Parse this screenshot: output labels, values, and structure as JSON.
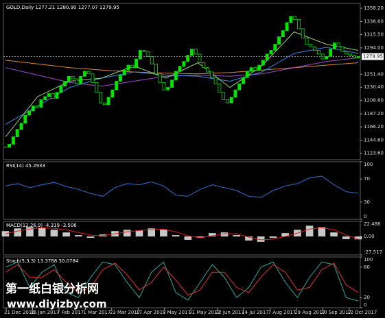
{
  "chart_data": [
    {
      "type": "candlestick",
      "title": "GOLD,Daily 1277.21 1280.90 1277.07 1279.95",
      "values": [
        1133,
        1138,
        1150,
        1162,
        1172,
        1185,
        1192,
        1200,
        1198,
        1210,
        1215,
        1220,
        1212,
        1222,
        1232,
        1240,
        1248,
        1244,
        1236,
        1248,
        1256,
        1252,
        1238,
        1222,
        1205,
        1202,
        1214,
        1226,
        1240,
        1250,
        1258,
        1266,
        1262,
        1276,
        1290,
        1288,
        1280,
        1268,
        1252,
        1238,
        1226,
        1230,
        1242,
        1256,
        1264,
        1272,
        1282,
        1292,
        1284,
        1270,
        1262,
        1255,
        1246,
        1236,
        1222,
        1210,
        1205,
        1214,
        1226,
        1236,
        1246,
        1256,
        1262,
        1258,
        1266,
        1274,
        1284,
        1290,
        1300,
        1312,
        1322,
        1335,
        1345,
        1340,
        1325,
        1310,
        1300,
        1296,
        1290,
        1284,
        1276,
        1280,
        1292,
        1302,
        1296,
        1288,
        1284,
        1282,
        1278,
        1279.95
      ],
      "color": "#00e600",
      "series": [
        {
          "color": "#d98a3a",
          "values": [
            1274,
            1268,
            1262,
            1258,
            1255,
            1253,
            1252,
            1254,
            1258,
            1262,
            1266,
            1270
          ]
        },
        {
          "color": "#a050c8",
          "values": [
            1262,
            1250,
            1238,
            1232,
            1240,
            1248,
            1250,
            1248,
            1252,
            1262,
            1272,
            1278
          ]
        },
        {
          "color": "#3a8ae0",
          "values": [
            1170,
            1200,
            1230,
            1245,
            1255,
            1250,
            1248,
            1240,
            1255,
            1285,
            1295,
            1285
          ]
        },
        {
          "color": "#9ad27a",
          "values": [
            1150,
            1215,
            1240,
            1245,
            1265,
            1245,
            1270,
            1230,
            1265,
            1320,
            1300,
            1290
          ]
        }
      ],
      "last_price": 1279.95,
      "ylim": [
        1113,
        1366
      ],
      "yticks": [
        {
          "value": 1358.2,
          "label": "1358.20"
        },
        {
          "value": 1336.6,
          "label": "1336.60"
        },
        {
          "value": 1315.5,
          "label": "1315.50"
        },
        {
          "value": 1294,
          "label": "1294.00"
        },
        {
          "value": 1251.4,
          "label": "1251.40"
        },
        {
          "value": 1230.4,
          "label": "1230.40"
        },
        {
          "value": 1208.8,
          "label": "1208.80"
        },
        {
          "value": 1187.2,
          "label": "1187.20"
        },
        {
          "value": 1166.2,
          "label": "1166.20"
        },
        {
          "value": 1144.6,
          "label": "1144.60"
        },
        {
          "value": 1123.6,
          "label": "1123.60"
        }
      ]
    },
    {
      "type": "line",
      "title": "RSI(14) 45.2933",
      "series": [
        {
          "color": "#3a6fd0",
          "values": [
            58,
            62,
            55,
            60,
            64,
            57,
            52,
            45,
            40,
            55,
            62,
            60,
            65,
            58,
            42,
            40,
            52,
            60,
            55,
            50,
            40,
            38,
            50,
            58,
            62,
            72,
            75,
            60,
            48,
            45.2933
          ]
        }
      ],
      "ylim": [
        0,
        100
      ],
      "yticks": [
        100,
        70,
        30,
        0
      ]
    },
    {
      "type": "macd",
      "title": "MACD(12,26,9) -4.319 -3.506",
      "values": [
        8,
        12,
        14,
        13,
        10,
        6,
        2,
        -2,
        3,
        8,
        10,
        9,
        12,
        10,
        2,
        -5,
        -2,
        5,
        6,
        2,
        -6,
        -8,
        -2,
        5,
        10,
        16,
        14,
        6,
        -4,
        -4.319
      ],
      "color": "#c8c8c8",
      "series": [
        {
          "color": "#e02020",
          "values": [
            4,
            8,
            11,
            13,
            12,
            10,
            6,
            2,
            1,
            4,
            7,
            9,
            10,
            11,
            7,
            1,
            -2,
            1,
            4,
            4,
            -1,
            -5,
            -4,
            0,
            5,
            11,
            13,
            10,
            2,
            -3.506
          ]
        }
      ],
      "ylim": [
        -27.517,
        22.488
      ],
      "yticks": [
        22.488,
        {
          "value": 0,
          "label": "0.00"
        },
        -27.517
      ]
    },
    {
      "type": "line",
      "title": "Stoch(5,3,3) 13.3788 30.0784",
      "series": [
        {
          "color": "#2aa8a0",
          "values": [
            80,
            90,
            40,
            70,
            85,
            30,
            20,
            60,
            90,
            85,
            50,
            20,
            70,
            90,
            30,
            15,
            50,
            85,
            60,
            20,
            40,
            80,
            90,
            50,
            20,
            60,
            90,
            85,
            20,
            13.3788
          ]
        },
        {
          "color": "#e03030",
          "values": [
            70,
            85,
            60,
            60,
            75,
            50,
            30,
            40,
            75,
            88,
            65,
            35,
            50,
            80,
            55,
            25,
            35,
            70,
            70,
            40,
            30,
            60,
            85,
            70,
            35,
            40,
            75,
            88,
            45,
            30.0784
          ]
        }
      ],
      "ylim": [
        0,
        100
      ],
      "yticks": [
        100,
        80,
        20,
        0
      ],
      "xticks": [
        "21 Dec 2016",
        "16 Jan 2017",
        "7 Feb 2017",
        "1 Mar 2017",
        "23 Mar 2017",
        "17 Apr 2017",
        "9 May 2017",
        "31 May 2017",
        "22 Jun 2017",
        "14 Jul 2017",
        "7 Aug 2017",
        "29 Aug 2017",
        "20 Sep 2017",
        "12 Oct 2017"
      ]
    }
  ],
  "watermark": {
    "title": "第一纸白银分析网",
    "url": "www.diyizby.com"
  }
}
